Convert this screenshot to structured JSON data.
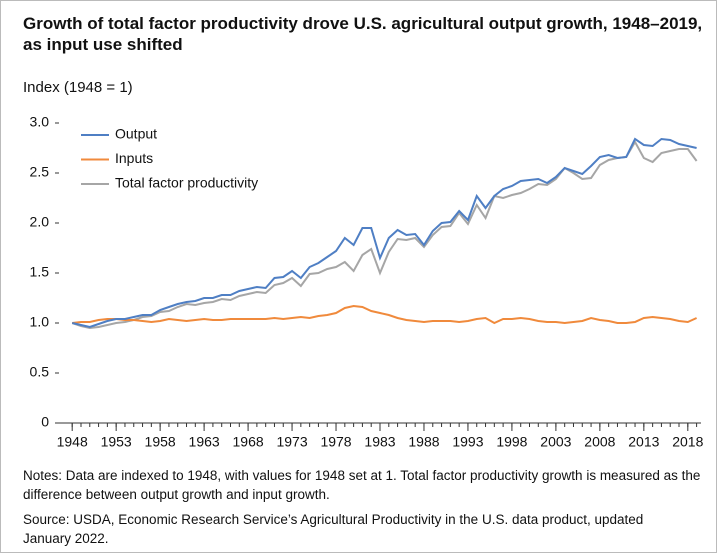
{
  "chart_data": {
    "type": "line",
    "title": "Growth of total factor productivity drove U.S. agricultural output growth, 1948–2019, as input use shifted",
    "y_label": "Index (1948 = 1)",
    "notes": "Notes: Data are indexed to 1948, with values for 1948 set at 1. Total factor productivity growth is measured as the difference between output growth and input growth.",
    "source": "Source: USDA, Economic Research Service’s Agricultural Productivity in the U.S. data product, updated January 2022.",
    "x": [
      1948,
      1949,
      1950,
      1951,
      1952,
      1953,
      1954,
      1955,
      1956,
      1957,
      1958,
      1959,
      1960,
      1961,
      1962,
      1963,
      1964,
      1965,
      1966,
      1967,
      1968,
      1969,
      1970,
      1971,
      1972,
      1973,
      1974,
      1975,
      1976,
      1977,
      1978,
      1979,
      1980,
      1981,
      1982,
      1983,
      1984,
      1985,
      1986,
      1987,
      1988,
      1989,
      1990,
      1991,
      1992,
      1993,
      1994,
      1995,
      1996,
      1997,
      1998,
      1999,
      2000,
      2001,
      2002,
      2003,
      2004,
      2005,
      2006,
      2007,
      2008,
      2009,
      2010,
      2011,
      2012,
      2013,
      2014,
      2015,
      2016,
      2017,
      2018,
      2019
    ],
    "series": [
      {
        "name": "Output",
        "color": "#4f7fc4",
        "values": [
          1.0,
          0.98,
          0.96,
          0.99,
          1.02,
          1.04,
          1.04,
          1.06,
          1.08,
          1.08,
          1.13,
          1.16,
          1.19,
          1.21,
          1.22,
          1.25,
          1.25,
          1.28,
          1.28,
          1.32,
          1.34,
          1.36,
          1.35,
          1.45,
          1.46,
          1.52,
          1.45,
          1.56,
          1.6,
          1.66,
          1.72,
          1.85,
          1.78,
          1.95,
          1.95,
          1.65,
          1.85,
          1.93,
          1.88,
          1.89,
          1.78,
          1.92,
          2.0,
          2.01,
          2.12,
          2.03,
          2.27,
          2.15,
          2.27,
          2.34,
          2.37,
          2.42,
          2.43,
          2.44,
          2.4,
          2.46,
          2.55,
          2.52,
          2.49,
          2.57,
          2.66,
          2.68,
          2.65,
          2.66,
          2.84,
          2.78,
          2.77,
          2.84,
          2.83,
          2.79,
          2.77,
          2.75
        ]
      },
      {
        "name": "Inputs",
        "color": "#f08a3c",
        "values": [
          1.0,
          1.01,
          1.01,
          1.03,
          1.04,
          1.04,
          1.03,
          1.03,
          1.02,
          1.01,
          1.02,
          1.04,
          1.03,
          1.02,
          1.03,
          1.04,
          1.03,
          1.03,
          1.04,
          1.04,
          1.04,
          1.04,
          1.04,
          1.05,
          1.04,
          1.05,
          1.06,
          1.05,
          1.07,
          1.08,
          1.1,
          1.15,
          1.17,
          1.16,
          1.12,
          1.1,
          1.08,
          1.05,
          1.03,
          1.02,
          1.01,
          1.02,
          1.02,
          1.02,
          1.01,
          1.02,
          1.04,
          1.05,
          1.0,
          1.04,
          1.04,
          1.05,
          1.04,
          1.02,
          1.01,
          1.01,
          1.0,
          1.01,
          1.02,
          1.05,
          1.03,
          1.02,
          1.0,
          1.0,
          1.01,
          1.05,
          1.06,
          1.05,
          1.04,
          1.02,
          1.01,
          1.05
        ]
      },
      {
        "name": "Total factor productivity",
        "color": "#a6a6a6",
        "values": [
          1.0,
          0.97,
          0.95,
          0.96,
          0.98,
          1.0,
          1.01,
          1.03,
          1.06,
          1.07,
          1.11,
          1.12,
          1.16,
          1.19,
          1.18,
          1.2,
          1.21,
          1.24,
          1.23,
          1.27,
          1.29,
          1.31,
          1.3,
          1.38,
          1.4,
          1.45,
          1.37,
          1.49,
          1.5,
          1.54,
          1.56,
          1.61,
          1.52,
          1.68,
          1.74,
          1.5,
          1.71,
          1.84,
          1.83,
          1.85,
          1.76,
          1.88,
          1.96,
          1.97,
          2.1,
          1.99,
          2.18,
          2.05,
          2.27,
          2.25,
          2.28,
          2.3,
          2.34,
          2.39,
          2.38,
          2.44,
          2.55,
          2.5,
          2.44,
          2.45,
          2.58,
          2.63,
          2.65,
          2.66,
          2.81,
          2.65,
          2.61,
          2.7,
          2.72,
          2.74,
          2.74,
          2.62
        ]
      }
    ],
    "xlim": [
      1946.5,
      2019.5
    ],
    "xticks": [
      1948,
      1953,
      1958,
      1963,
      1968,
      1973,
      1978,
      1983,
      1988,
      1993,
      1998,
      2003,
      2008,
      2013,
      2018
    ],
    "ylim": [
      0,
      3.1
    ],
    "yticks": [
      0,
      0.5,
      {
        "value": 1,
        "label": "1.0"
      },
      1.5,
      {
        "value": 2,
        "label": "2.0"
      },
      2.5,
      {
        "value": 3,
        "label": "3.0"
      }
    ],
    "legend": "top-left"
  }
}
